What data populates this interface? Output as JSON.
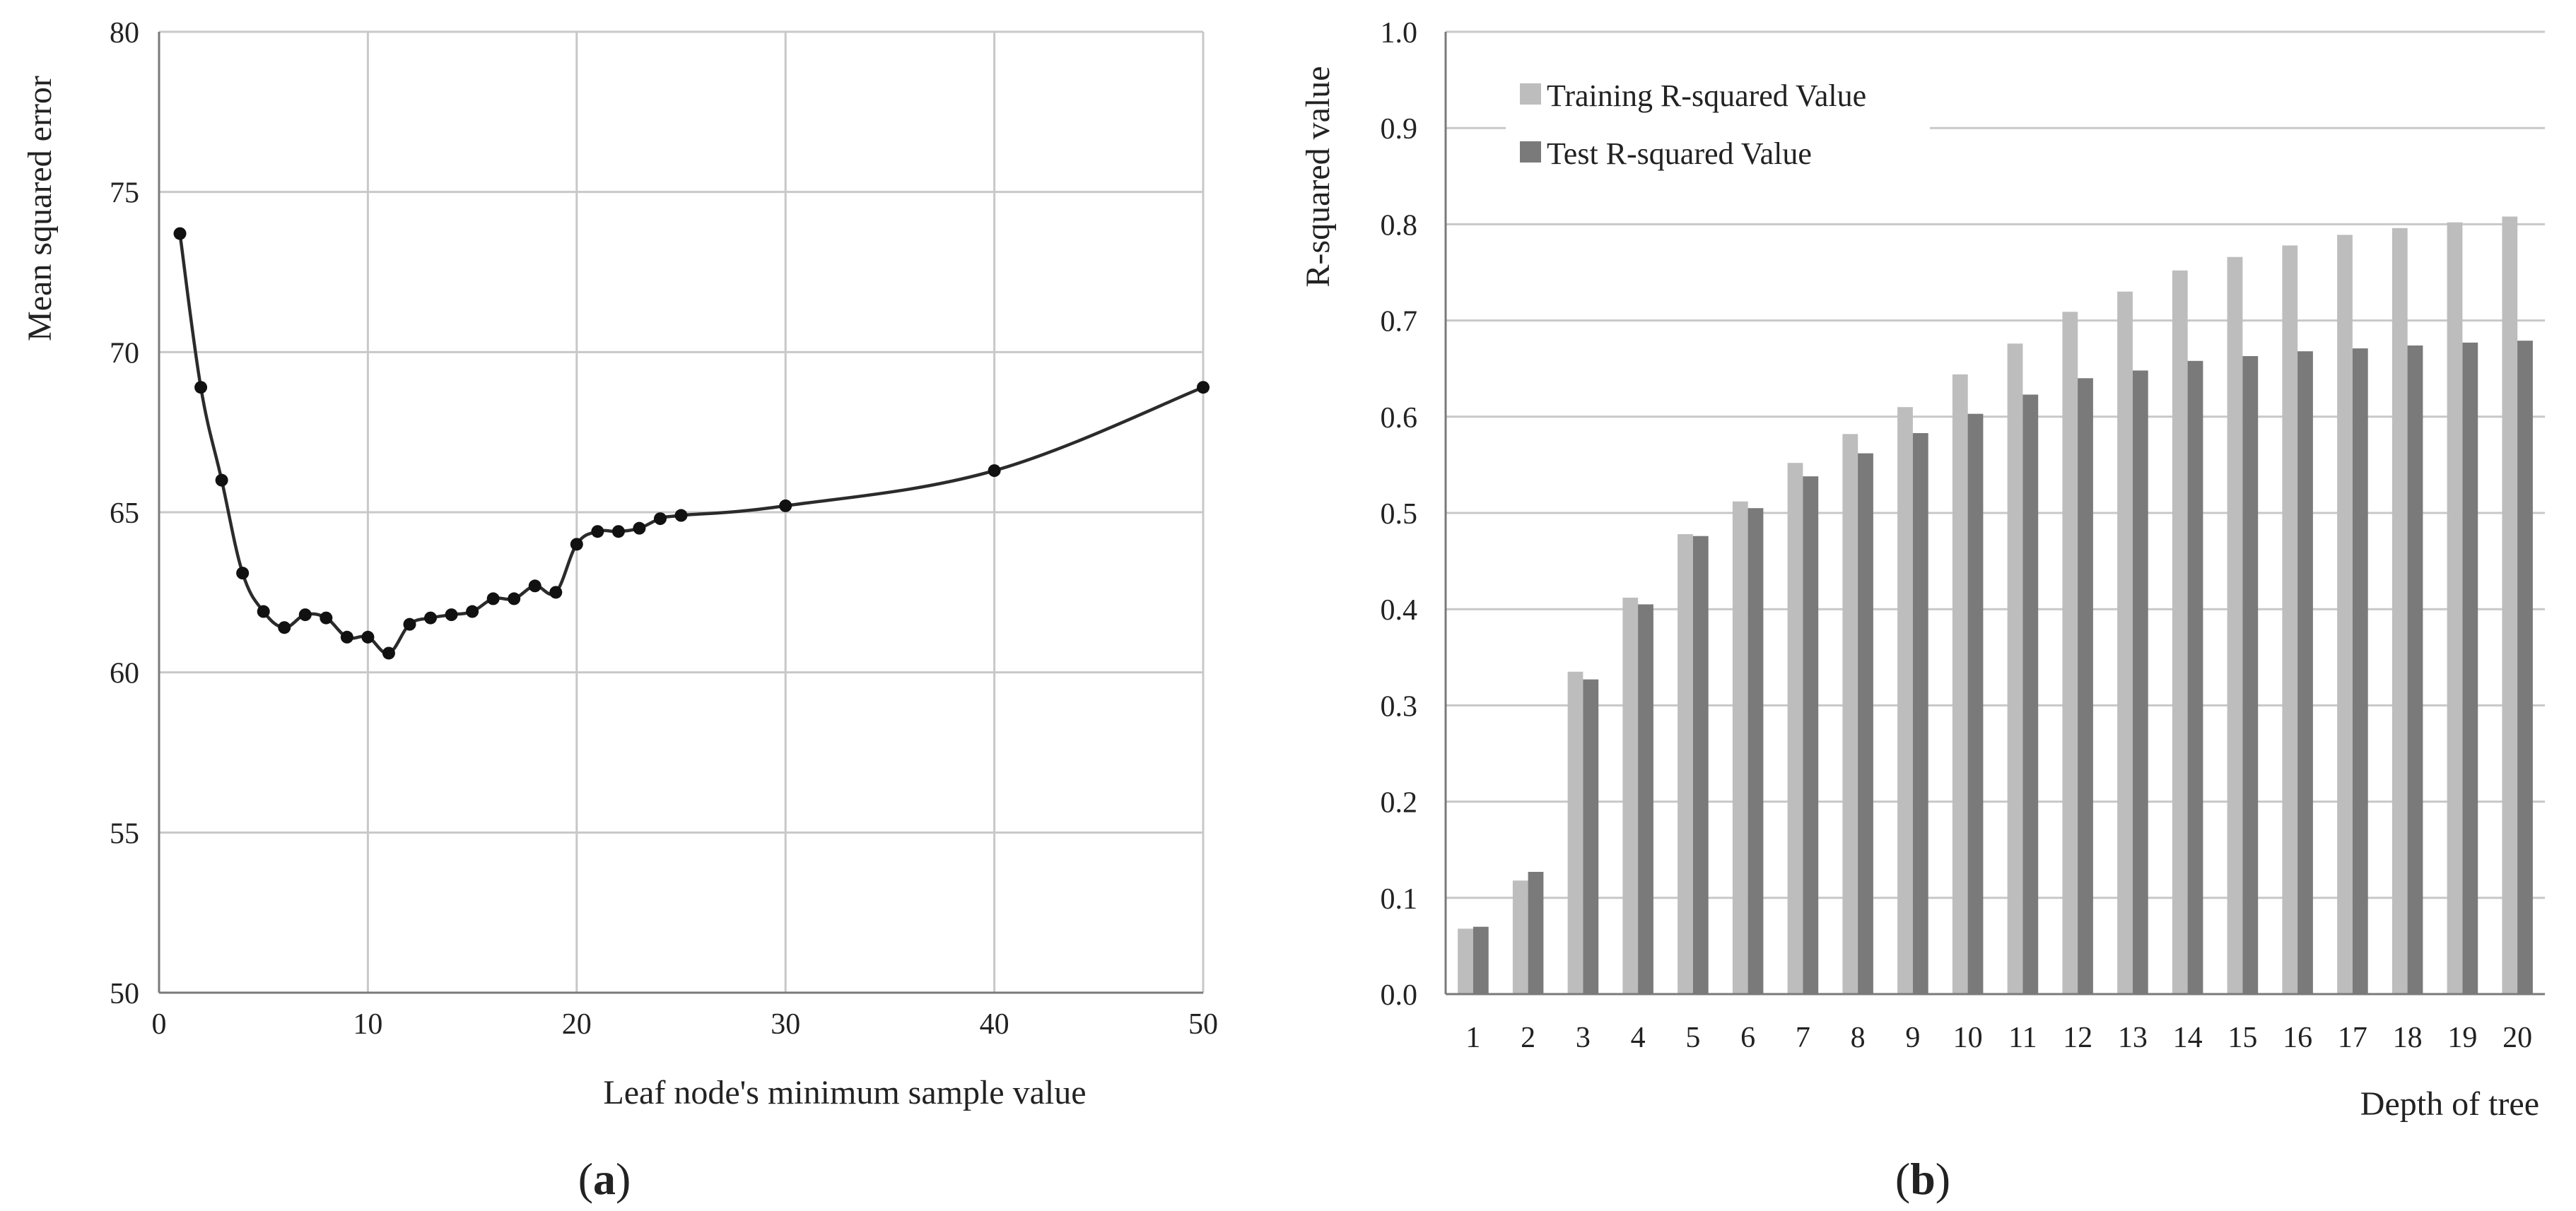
{
  "chart_data": [
    {
      "type": "line",
      "panel_label_open": "(",
      "panel_label_letter": "a",
      "panel_label_close": ")",
      "xlabel": "Leaf node's minimum sample value",
      "ylabel": "Mean squared error",
      "xlim": [
        0,
        50
      ],
      "ylim": [
        50,
        80
      ],
      "xticks": [
        "0",
        "10",
        "20",
        "30",
        "40",
        "50"
      ],
      "yticks": [
        "50",
        "55",
        "60",
        "65",
        "70",
        "75",
        "80"
      ],
      "grid": true,
      "line_color": "#2b2b2b",
      "x": [
        1,
        2,
        3,
        4,
        5,
        6,
        7,
        8,
        9,
        10,
        11,
        12,
        13,
        14,
        15,
        16,
        17,
        18,
        19,
        20,
        21,
        22,
        23,
        24,
        25,
        30,
        40,
        50
      ],
      "y": [
        73.7,
        68.9,
        66.0,
        63.1,
        61.9,
        61.4,
        61.8,
        61.7,
        61.1,
        61.1,
        60.6,
        61.5,
        61.7,
        61.8,
        61.9,
        62.3,
        62.3,
        62.7,
        62.5,
        64.0,
        64.4,
        64.4,
        64.5,
        64.8,
        64.9,
        65.2,
        66.3,
        68.9
      ]
    },
    {
      "type": "bar",
      "panel_label_open": "(",
      "panel_label_letter": "b",
      "panel_label_close": ")",
      "xlabel": "Depth of tree",
      "ylabel": "R-squared value",
      "ylim": [
        0,
        1.0
      ],
      "yticks": [
        "0.0",
        "0.1",
        "0.2",
        "0.3",
        "0.4",
        "0.5",
        "0.6",
        "0.7",
        "0.8",
        "0.9",
        "1.0"
      ],
      "grid": true,
      "legend_position": "top-left",
      "categories": [
        "1",
        "2",
        "3",
        "4",
        "5",
        "6",
        "7",
        "8",
        "9",
        "10",
        "11",
        "12",
        "13",
        "14",
        "15",
        "16",
        "17",
        "18",
        "19",
        "20"
      ],
      "series": [
        {
          "name": "Training R-squared Value",
          "color": "#bdbdbd",
          "values": [
            0.068,
            0.118,
            0.335,
            0.412,
            0.478,
            0.512,
            0.552,
            0.582,
            0.61,
            0.644,
            0.676,
            0.709,
            0.73,
            0.752,
            0.766,
            0.778,
            0.789,
            0.796,
            0.802,
            0.808
          ]
        },
        {
          "name": "Test R-squared Value",
          "color": "#7a7a7a",
          "values": [
            0.07,
            0.127,
            0.327,
            0.405,
            0.476,
            0.505,
            0.538,
            0.562,
            0.583,
            0.603,
            0.623,
            0.64,
            0.648,
            0.658,
            0.663,
            0.668,
            0.671,
            0.674,
            0.677,
            0.679
          ]
        }
      ]
    }
  ]
}
